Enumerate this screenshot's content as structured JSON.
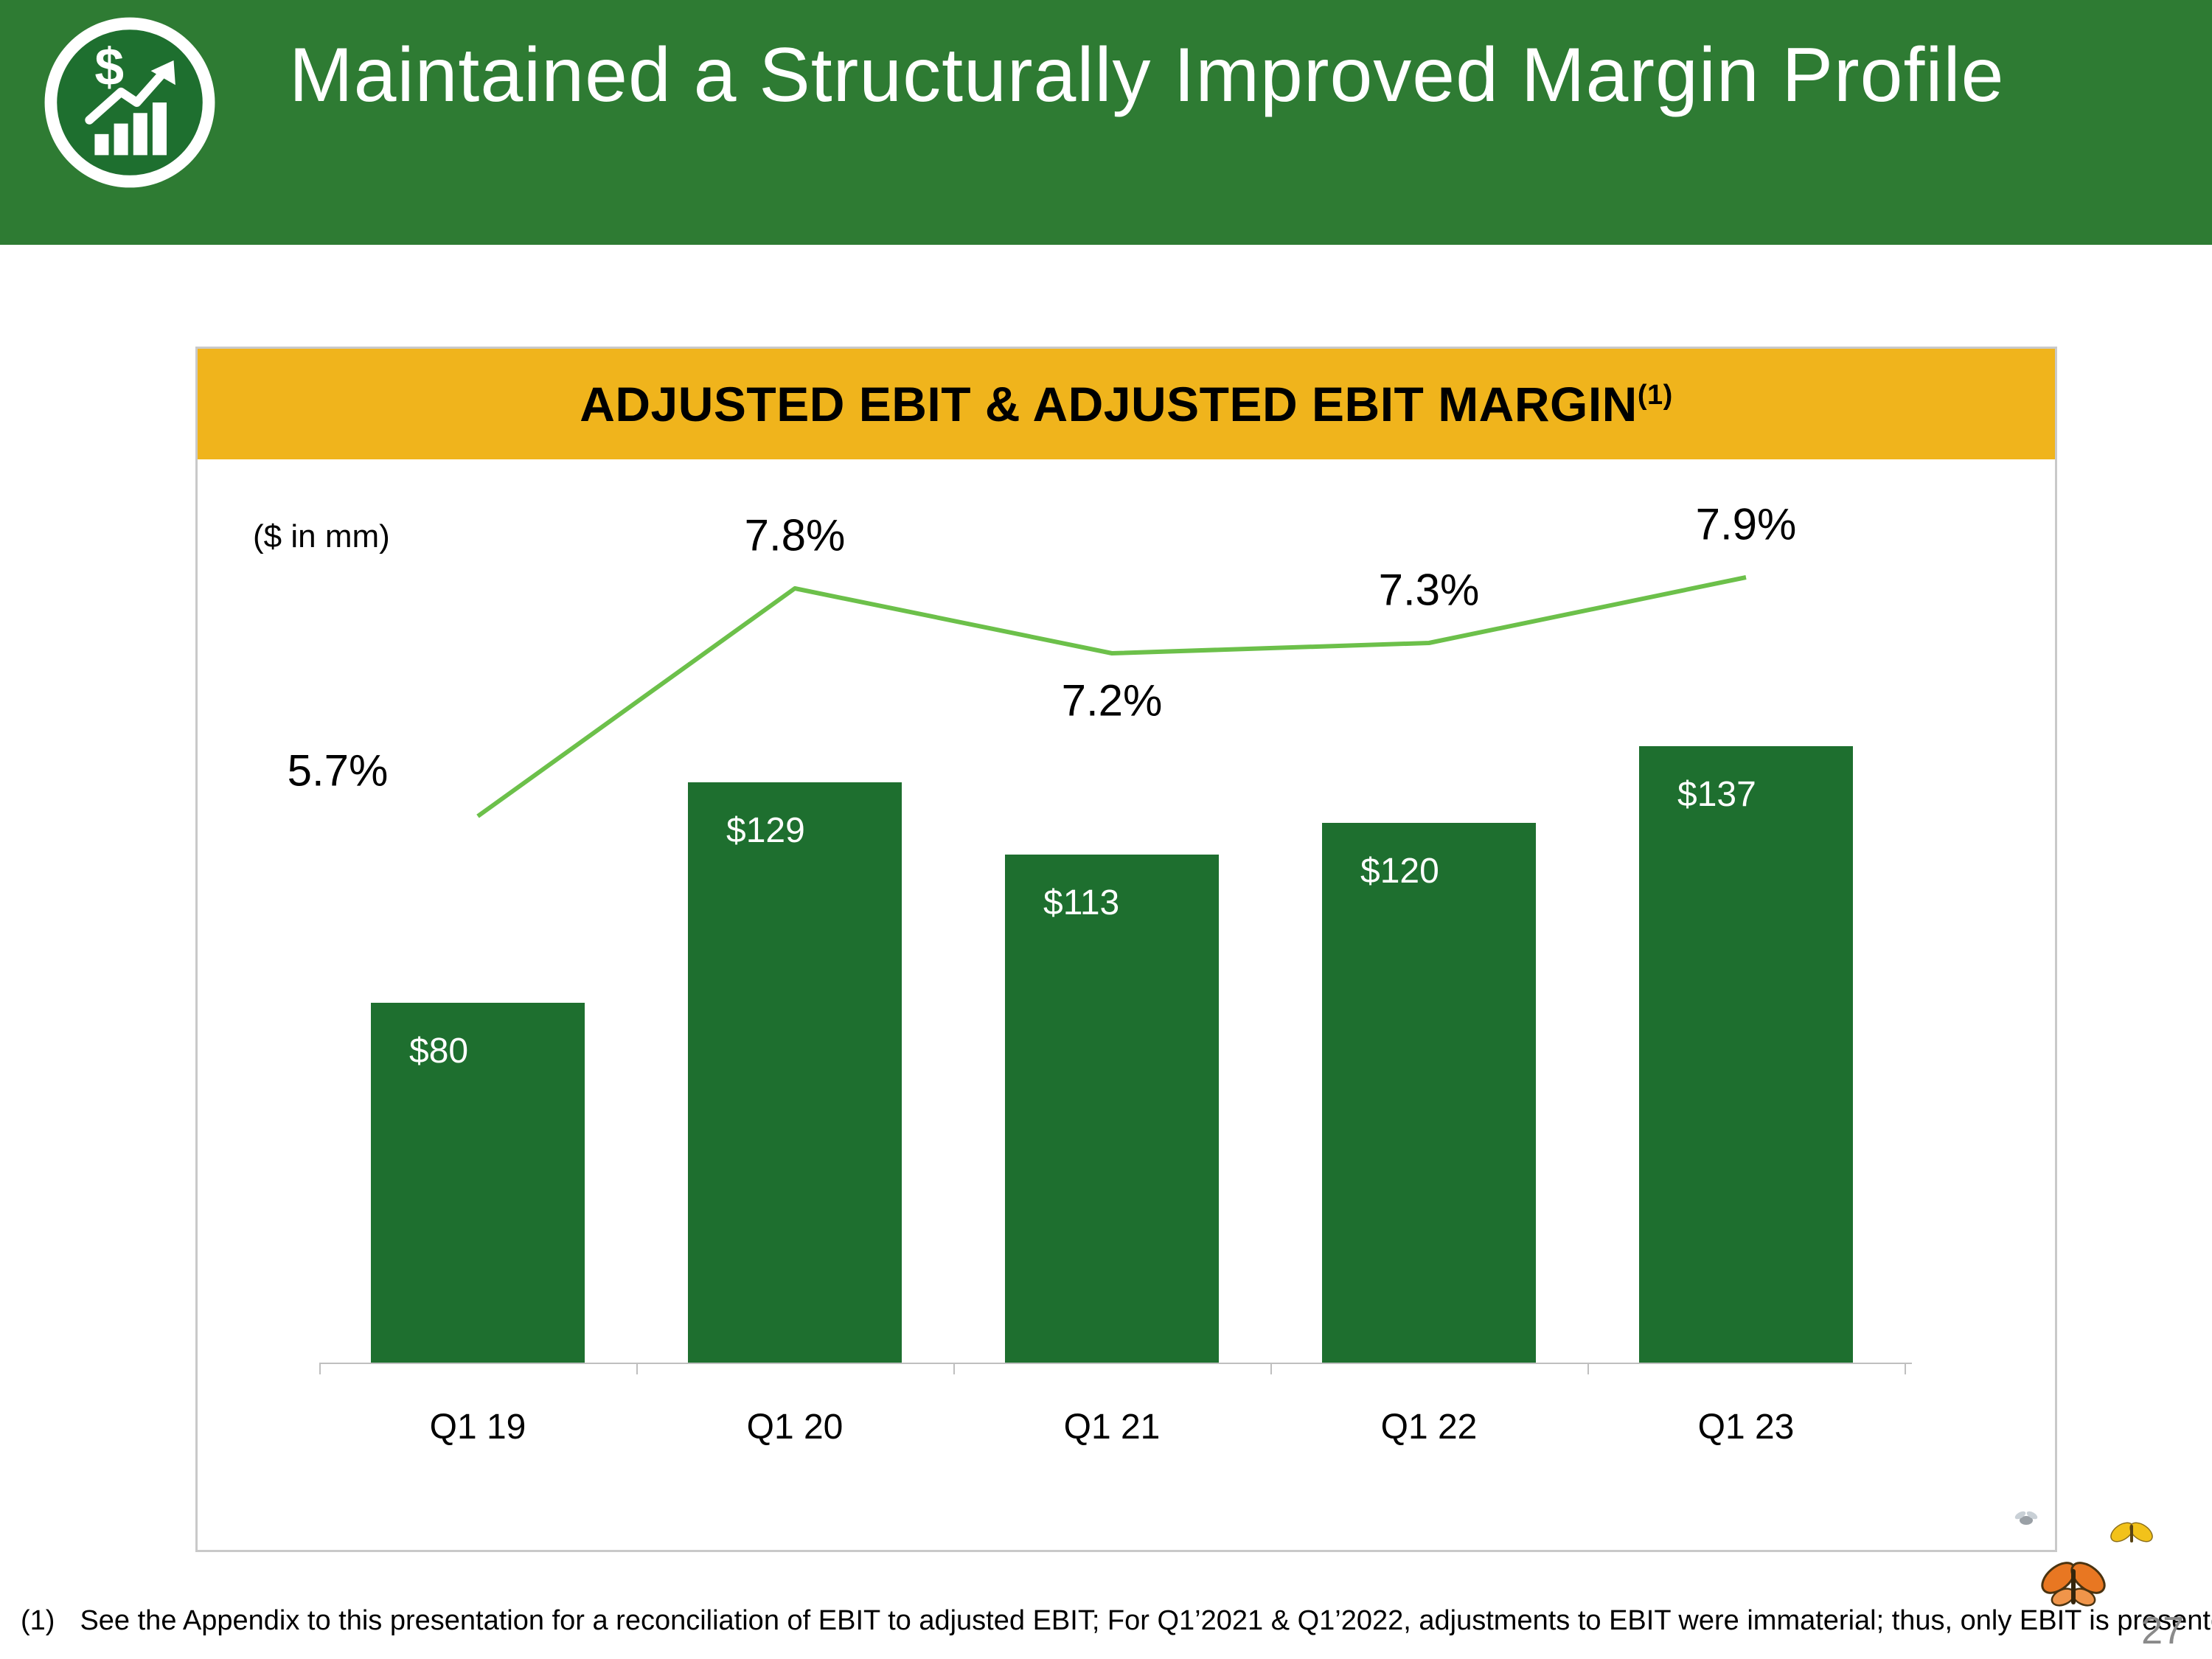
{
  "header": {
    "title": "Maintained a Structurally Improved Margin Profile"
  },
  "chart": {
    "title": "ADJUSTED EBIT & ADJUSTED EBIT MARGIN",
    "title_superscript": "(1)",
    "units_label": "($ in mm)"
  },
  "chart_data": {
    "type": "bar",
    "title": "ADJUSTED EBIT & ADJUSTED EBIT MARGIN(1)",
    "categories": [
      "Q1 19",
      "Q1 20",
      "Q1 21",
      "Q1 22",
      "Q1 23"
    ],
    "series": [
      {
        "name": "Adjusted EBIT ($ in mm)",
        "type": "bar",
        "values": [
          80,
          129,
          113,
          120,
          137
        ],
        "labels": [
          "$80",
          "$129",
          "$113",
          "$120",
          "$137"
        ]
      },
      {
        "name": "Adjusted EBIT Margin (%)",
        "type": "line",
        "values": [
          5.7,
          7.8,
          7.2,
          7.3,
          7.9
        ],
        "labels": [
          "5.7%",
          "7.8%",
          "7.2%",
          "7.3%",
          "7.9%"
        ],
        "label_positions": [
          "left-above",
          "above",
          "below",
          "above",
          "above"
        ]
      }
    ],
    "xlabel": "",
    "ylabel": "($ in mm)",
    "ylim": [
      0,
      150
    ],
    "grid": false,
    "legend": "none"
  },
  "footnote": {
    "marker": "(1)",
    "text": "See the Appendix to this presentation for a reconciliation of EBIT to adjusted EBIT;  For Q1’2021 & Q1’2022, adjustments to EBIT were immaterial; thus, only EBIT is presented."
  },
  "page_number": "27",
  "colors": {
    "header_green": "#2e7b33",
    "bar_green": "#1e6f2f",
    "line_green": "#6cc04a",
    "band_yellow": "#f0b41c"
  }
}
